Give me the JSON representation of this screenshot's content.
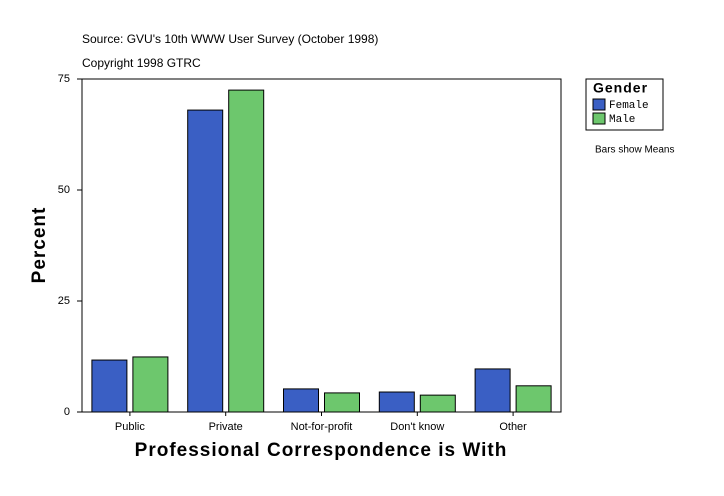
{
  "chart_data": {
    "type": "bar",
    "subtitle": "Source: GVU's 10th WWW User Survey (October 1998)",
    "copyright": "Copyright 1998 GTRC",
    "x_label": "Professional Correspondence is With",
    "y_label": "Percent",
    "categories": [
      "Public",
      "Private",
      "Not-for-profit",
      "Don't know",
      "Other"
    ],
    "legend_title": "Gender",
    "series": [
      {
        "name": "Female",
        "color": "#3a5fc4",
        "values": [
          11.7,
          68.0,
          5.2,
          4.5,
          9.7
        ]
      },
      {
        "name": "Male",
        "color": "#6dc76d",
        "values": [
          12.4,
          72.5,
          4.3,
          3.8,
          5.9
        ]
      }
    ],
    "annotation": "Bars show Means",
    "ylim": [
      0,
      75
    ],
    "yticks": [
      0,
      25,
      50,
      75
    ]
  }
}
